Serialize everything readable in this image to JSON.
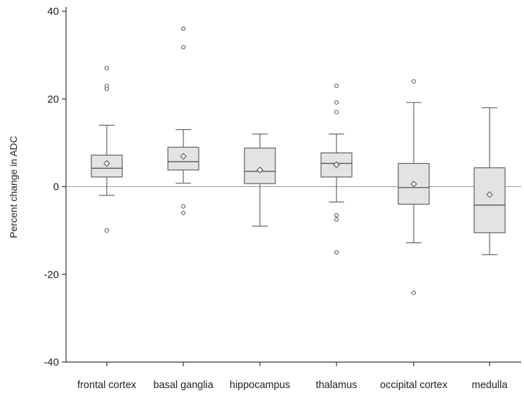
{
  "chart_data": {
    "type": "boxplot",
    "title": "",
    "xlabel": "",
    "ylabel": "Percent change in ADC",
    "ylim": [
      -40,
      40
    ],
    "yticks": [
      40,
      20,
      0,
      -20,
      -40
    ],
    "ytick_labels": [
      "40",
      "20",
      "0",
      "-20",
      "-40"
    ],
    "reference_line": 0,
    "grid": false,
    "colors": {
      "box_fill": "#e3e3e3",
      "stroke": "#555555",
      "axis": "#333333",
      "ref_line": "#999999"
    },
    "categories": [
      "frontal cortex",
      "basal ganglia",
      "hippocampus",
      "thalamus",
      "occipital cortex",
      "medulla"
    ],
    "boxes": [
      {
        "category": "frontal cortex",
        "whisker_low": -2,
        "q1": 2.2,
        "median": 4.2,
        "q3": 7.2,
        "whisker_high": 14,
        "mean": 5.3,
        "outliers": [
          27,
          23,
          22.3,
          -10
        ]
      },
      {
        "category": "basal ganglia",
        "whisker_low": 0.8,
        "q1": 3.8,
        "median": 5.7,
        "q3": 9.0,
        "whisker_high": 13,
        "mean": 6.9,
        "outliers": [
          36,
          31.8,
          -4.5,
          -6
        ]
      },
      {
        "category": "hippocampus",
        "whisker_low": -9,
        "q1": 0.7,
        "median": 3.5,
        "q3": 8.8,
        "whisker_high": 12,
        "mean": 3.8,
        "outliers": []
      },
      {
        "category": "thalamus",
        "whisker_low": -3.5,
        "q1": 2.2,
        "median": 5.3,
        "q3": 7.7,
        "whisker_high": 12,
        "mean": 5.0,
        "outliers": [
          23,
          19.2,
          17,
          -6.5,
          -7.5,
          -15
        ]
      },
      {
        "category": "occipital cortex",
        "whisker_low": -12.8,
        "q1": -4,
        "median": -0.2,
        "q3": 5.3,
        "whisker_high": 19.2,
        "mean": 0.6,
        "outliers": [
          24,
          -24.2
        ]
      },
      {
        "category": "medulla",
        "whisker_low": -15.5,
        "q1": -10.5,
        "median": -4.2,
        "q3": 4.3,
        "whisker_high": 18,
        "mean": -1.8,
        "outliers": []
      }
    ]
  }
}
